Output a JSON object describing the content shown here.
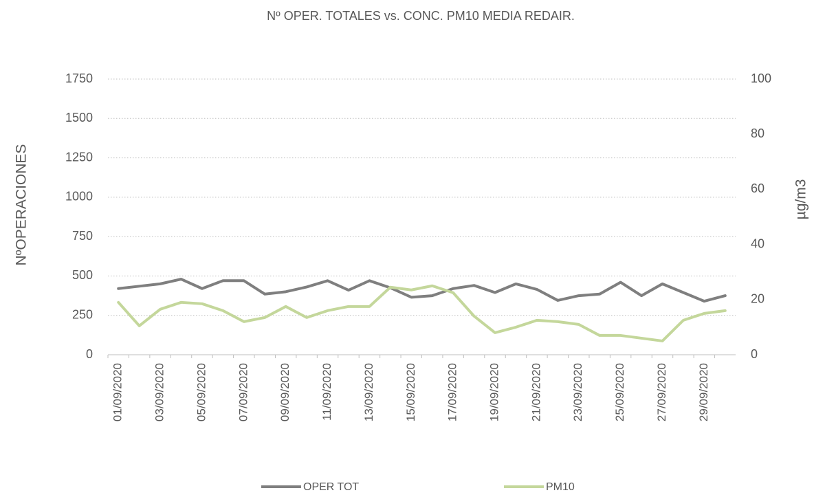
{
  "chart_data": {
    "type": "line",
    "title": "Nº OPER. TOTALES vs. CONC. PM10 MEDIA REDAIR.",
    "y_label": "NºOPERACIONES",
    "y2_label": "µg/m3",
    "categories": [
      "01/09/2020",
      null,
      "03/09/2020",
      null,
      "05/09/2020",
      null,
      "07/09/2020",
      null,
      "09/09/2020",
      null,
      "11/09/2020",
      null,
      "13/09/2020",
      null,
      "15/09/2020",
      null,
      "17/09/2020",
      null,
      "19/09/2020",
      null,
      "21/09/2020",
      null,
      "23/09/2020",
      null,
      "25/09/2020",
      null,
      "27/09/2020",
      null,
      "29/09/2020",
      null
    ],
    "series": [
      {
        "name": "OPER TOT",
        "color": "#7f7f7f",
        "values": [
          420,
          435,
          450,
          480,
          420,
          470,
          470,
          385,
          400,
          430,
          470,
          410,
          470,
          425,
          365,
          375,
          420,
          440,
          395,
          450,
          415,
          345,
          375,
          385,
          460,
          375,
          450,
          395,
          340,
          375
        ]
      },
      {
        "name": "PM10",
        "color": "#c4d79b",
        "axis": "y2",
        "values": [
          19,
          10.5,
          16.5,
          19,
          18.5,
          16,
          12,
          13.5,
          17.5,
          13.5,
          16,
          17.5,
          17.5,
          24.5,
          23.5,
          25,
          22.5,
          14,
          8,
          10,
          12.5,
          12,
          11,
          7,
          7,
          6,
          5,
          12.5,
          15,
          16
        ]
      }
    ],
    "ylim": [
      0,
      1750
    ],
    "yticks": [
      0,
      250,
      500,
      750,
      1000,
      1250,
      1500,
      1750
    ],
    "y2lim": [
      0,
      100
    ],
    "y2ticks": [
      0,
      20,
      40,
      60,
      80,
      100
    ],
    "grid": true,
    "legend": "bottom"
  }
}
